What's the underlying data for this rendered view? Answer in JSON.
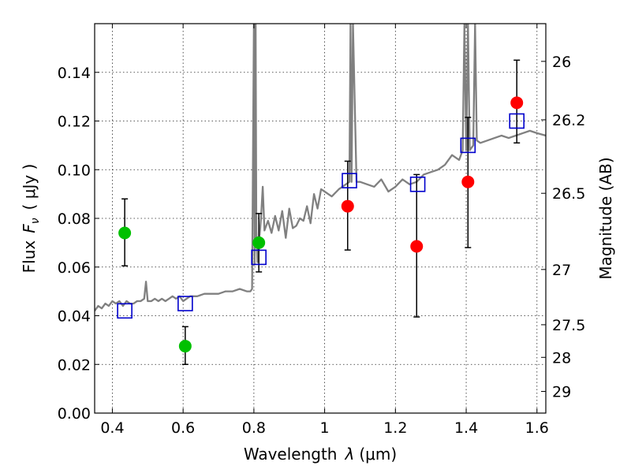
{
  "chart_data": {
    "type": "scatter",
    "xlabel": "Wavelength",
    "xlabel_symbol": "λ",
    "xlabel_unit": "(μm)",
    "ylabel": "Flux",
    "ylabel_symbol": "F",
    "ylabel_subscript": "ν",
    "ylabel_unit": "( μJy )",
    "ylabel_right": "Magnitude (AB)",
    "xlim": [
      0.35,
      1.625
    ],
    "ylim": [
      0.0,
      0.16
    ],
    "grid": true,
    "x_ticks": [
      0.4,
      0.6,
      0.8,
      1.0,
      1.2,
      1.4,
      1.6
    ],
    "x_tick_labels": [
      "0.4",
      "0.6",
      "0.8",
      "1",
      "1.2",
      "1.4",
      "1.6"
    ],
    "y_ticks": [
      0.0,
      0.02,
      0.04,
      0.06,
      0.08,
      0.1,
      0.12,
      0.14
    ],
    "y_tick_labels": [
      "0.00",
      "0.02",
      "0.04",
      "0.06",
      "0.08",
      "0.10",
      "0.12",
      "0.14"
    ],
    "right_ticks": [
      {
        "flux": 0.1445,
        "label": "26"
      },
      {
        "flux": 0.1205,
        "label": "26.2"
      },
      {
        "flux": 0.0903,
        "label": "26.5"
      },
      {
        "flux": 0.059,
        "label": "27"
      },
      {
        "flux": 0.0363,
        "label": "27.5"
      },
      {
        "flux": 0.0229,
        "label": "28"
      },
      {
        "flux": 0.0089,
        "label": "29"
      }
    ],
    "colors": {
      "green": "#00c000",
      "red": "#ff0000",
      "model_box": "#0000cc",
      "spectrum": "#808080",
      "errorbar": "#000000"
    },
    "series": [
      {
        "name": "detections-green",
        "marker": "circle",
        "color": "#00c000",
        "x": [
          0.435,
          0.606,
          0.814
        ],
        "y": [
          0.074,
          0.0275,
          0.07
        ],
        "err_low": [
          0.0605,
          0.02,
          0.058
        ],
        "err_high": [
          0.088,
          0.0355,
          0.082
        ]
      },
      {
        "name": "detections-red",
        "marker": "circle",
        "color": "#ff0000",
        "x": [
          1.065,
          1.26,
          1.405,
          1.543
        ],
        "y": [
          0.085,
          0.0685,
          0.095,
          0.1275
        ],
        "err_low": [
          0.067,
          0.0395,
          0.068,
          0.111
        ],
        "err_high": [
          0.1035,
          0.098,
          0.1215,
          0.145
        ]
      },
      {
        "name": "model-photometry",
        "marker": "square",
        "color": "#0000cc",
        "x": [
          0.435,
          0.606,
          0.814,
          1.07,
          1.263,
          1.405,
          1.543
        ],
        "y": [
          0.042,
          0.045,
          0.064,
          0.0955,
          0.094,
          0.11,
          0.12
        ]
      },
      {
        "name": "model-spectrum",
        "marker": "line",
        "color": "#808080",
        "x": [
          0.35,
          0.36,
          0.37,
          0.38,
          0.39,
          0.4,
          0.41,
          0.42,
          0.43,
          0.44,
          0.45,
          0.46,
          0.47,
          0.48,
          0.49,
          0.495,
          0.5,
          0.51,
          0.52,
          0.53,
          0.54,
          0.55,
          0.56,
          0.57,
          0.58,
          0.59,
          0.6,
          0.62,
          0.64,
          0.66,
          0.68,
          0.7,
          0.72,
          0.74,
          0.76,
          0.78,
          0.79,
          0.795,
          0.8,
          0.802,
          0.805,
          0.807,
          0.81,
          0.82,
          0.825,
          0.83,
          0.84,
          0.85,
          0.86,
          0.87,
          0.88,
          0.89,
          0.9,
          0.91,
          0.92,
          0.93,
          0.94,
          0.95,
          0.96,
          0.97,
          0.98,
          0.99,
          1.0,
          1.02,
          1.04,
          1.06,
          1.07,
          1.073,
          1.076,
          1.08,
          1.09,
          1.1,
          1.12,
          1.14,
          1.16,
          1.18,
          1.2,
          1.22,
          1.24,
          1.26,
          1.28,
          1.3,
          1.32,
          1.34,
          1.36,
          1.38,
          1.39,
          1.395,
          1.4,
          1.405,
          1.41,
          1.42,
          1.425,
          1.43,
          1.44,
          1.46,
          1.48,
          1.5,
          1.52,
          1.54,
          1.56,
          1.58,
          1.6,
          1.625
        ],
        "y": [
          0.042,
          0.044,
          0.043,
          0.045,
          0.044,
          0.046,
          0.045,
          0.046,
          0.044,
          0.046,
          0.045,
          0.045,
          0.046,
          0.046,
          0.047,
          0.054,
          0.046,
          0.046,
          0.047,
          0.046,
          0.047,
          0.046,
          0.047,
          0.048,
          0.047,
          0.048,
          0.046,
          0.048,
          0.048,
          0.049,
          0.049,
          0.049,
          0.05,
          0.05,
          0.051,
          0.05,
          0.05,
          0.051,
          0.16,
          0.061,
          0.16,
          0.075,
          0.062,
          0.08,
          0.093,
          0.075,
          0.079,
          0.074,
          0.081,
          0.075,
          0.083,
          0.072,
          0.084,
          0.076,
          0.077,
          0.08,
          0.079,
          0.085,
          0.078,
          0.09,
          0.084,
          0.092,
          0.091,
          0.089,
          0.092,
          0.094,
          0.095,
          0.16,
          0.095,
          0.16,
          0.095,
          0.095,
          0.094,
          0.093,
          0.096,
          0.091,
          0.093,
          0.096,
          0.094,
          0.095,
          0.098,
          0.099,
          0.1,
          0.102,
          0.106,
          0.104,
          0.108,
          0.16,
          0.108,
          0.16,
          0.108,
          0.11,
          0.16,
          0.112,
          0.111,
          0.112,
          0.113,
          0.114,
          0.113,
          0.114,
          0.115,
          0.116,
          0.115,
          0.114
        ]
      }
    ]
  }
}
